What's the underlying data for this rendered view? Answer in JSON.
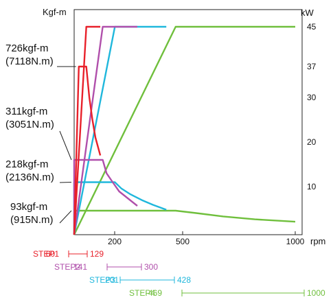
{
  "chart_data": {
    "type": "line",
    "left_axis_label": "Kgf-m",
    "right_axis_label": "kW",
    "x_unit_label": "rpm",
    "x_ticks": [
      200,
      500,
      1000
    ],
    "x_tick_labels": [
      "200",
      "500",
      "1000"
    ],
    "right_ticks": [
      10,
      20,
      30,
      37,
      45
    ],
    "right_tick_labels": [
      "10",
      "20",
      "30",
      "37",
      "45"
    ],
    "xlim": [
      0,
      1000
    ],
    "ylim_kw": [
      0,
      45
    ],
    "torque_annotations": [
      {
        "label": "726kgf-m",
        "sub": "(7118N.m)",
        "torque_level_kw": 37
      },
      {
        "label": "311kgf-m",
        "sub": "(3051N.m)",
        "torque_level_kw": 16
      },
      {
        "label": "218kgf-m",
        "sub": "(2136N.m)",
        "torque_level_kw": 11
      },
      {
        "label": "93kgf-m",
        "sub": "(915N.m)",
        "torque_level_kw": 5
      }
    ],
    "series": [
      {
        "name": "STEP1",
        "color": "#e8202a",
        "rpm_from": "60",
        "rpm_to": "129",
        "torque_curve": [
          [
            0,
            0
          ],
          [
            23,
            37
          ],
          [
            60,
            37
          ],
          [
            75,
            30
          ],
          [
            90,
            25
          ],
          [
            105,
            21
          ],
          [
            129,
            17
          ]
        ],
        "power_curve": [
          [
            0,
            0
          ],
          [
            60,
            45
          ],
          [
            129,
            45
          ]
        ]
      },
      {
        "name": "STEP2",
        "color": "#b04fab",
        "rpm_from": "141",
        "rpm_to": "300",
        "torque_curve": [
          [
            0,
            0
          ],
          [
            0,
            16
          ],
          [
            141,
            16
          ],
          [
            160,
            13
          ],
          [
            190,
            11
          ],
          [
            220,
            9
          ],
          [
            260,
            7.5
          ],
          [
            300,
            6
          ]
        ],
        "power_curve": [
          [
            0,
            0
          ],
          [
            141,
            45
          ],
          [
            300,
            45
          ]
        ]
      },
      {
        "name": "STEP3",
        "color": "#1fb7dc",
        "rpm_from": "201",
        "rpm_to": "428",
        "torque_curve": [
          [
            0,
            0
          ],
          [
            0,
            11
          ],
          [
            201,
            11
          ],
          [
            230,
            9.6
          ],
          [
            270,
            8.4
          ],
          [
            320,
            7.2
          ],
          [
            370,
            6.2
          ],
          [
            428,
            5.2
          ]
        ],
        "power_curve": [
          [
            0,
            0
          ],
          [
            201,
            45
          ],
          [
            428,
            45
          ]
        ]
      },
      {
        "name": "STEP4",
        "color": "#6fbf3c",
        "rpm_from": "469",
        "rpm_to": "1000",
        "torque_curve": [
          [
            0,
            5
          ],
          [
            469,
            5
          ],
          [
            560,
            4.5
          ],
          [
            680,
            3.8
          ],
          [
            820,
            3.2
          ],
          [
            1000,
            2.7
          ]
        ],
        "power_curve": [
          [
            0,
            0
          ],
          [
            469,
            45
          ],
          [
            1000,
            45
          ]
        ]
      }
    ]
  }
}
